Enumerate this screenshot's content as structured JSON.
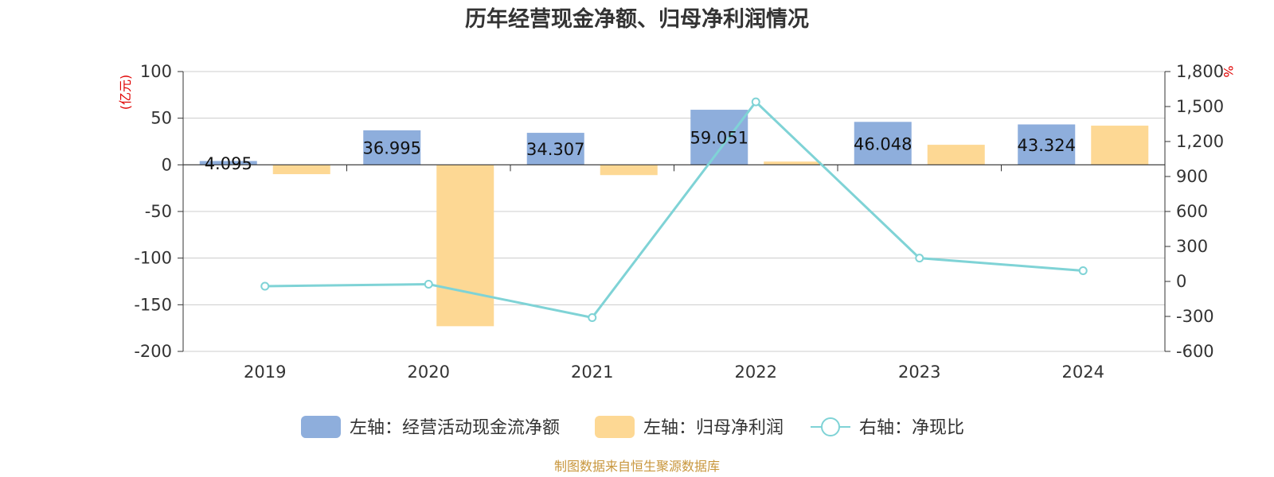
{
  "chart_data": {
    "type": "bar",
    "title": "历年经营现金净额、归母净利润情况",
    "categories": [
      "2019",
      "2020",
      "2021",
      "2022",
      "2023",
      "2024"
    ],
    "series": [
      {
        "name": "左轴：经营活动现金流净额",
        "type": "bar",
        "axis": "left",
        "color": "#8eaedc",
        "values": [
          4.095,
          36.995,
          34.307,
          59.051,
          46.048,
          43.324
        ],
        "labels": [
          "4.095",
          "36.995",
          "34.307",
          "59.051",
          "46.048",
          "43.324"
        ]
      },
      {
        "name": "左轴：归母净利润",
        "type": "bar",
        "axis": "left",
        "color": "#fdd894",
        "values": [
          -10,
          -173,
          -11,
          3.5,
          21.5,
          42
        ]
      },
      {
        "name": "右轴：净现比",
        "type": "line",
        "axis": "right",
        "color": "#7fd3d6",
        "values": [
          -41,
          -24,
          -310,
          1540,
          200,
          92
        ]
      }
    ],
    "left_axis": {
      "unit": "(亿元)",
      "range": [
        -200,
        100
      ],
      "ticks": [
        "100",
        "50",
        "0",
        "-50",
        "-100",
        "-150",
        "-200"
      ],
      "tick_values": [
        100,
        50,
        0,
        -50,
        -100,
        -150,
        -200
      ]
    },
    "right_axis": {
      "unit": "%",
      "range": [
        -600,
        1800
      ],
      "ticks": [
        "1,800",
        "1,500",
        "1,200",
        "900",
        "600",
        "300",
        "0",
        "-300",
        "-600"
      ],
      "tick_values": [
        1800,
        1500,
        1200,
        900,
        600,
        300,
        0,
        -300,
        -600
      ]
    },
    "grid": true,
    "legend_position": "bottom",
    "source": "制图数据来自恒生聚源数据库"
  }
}
